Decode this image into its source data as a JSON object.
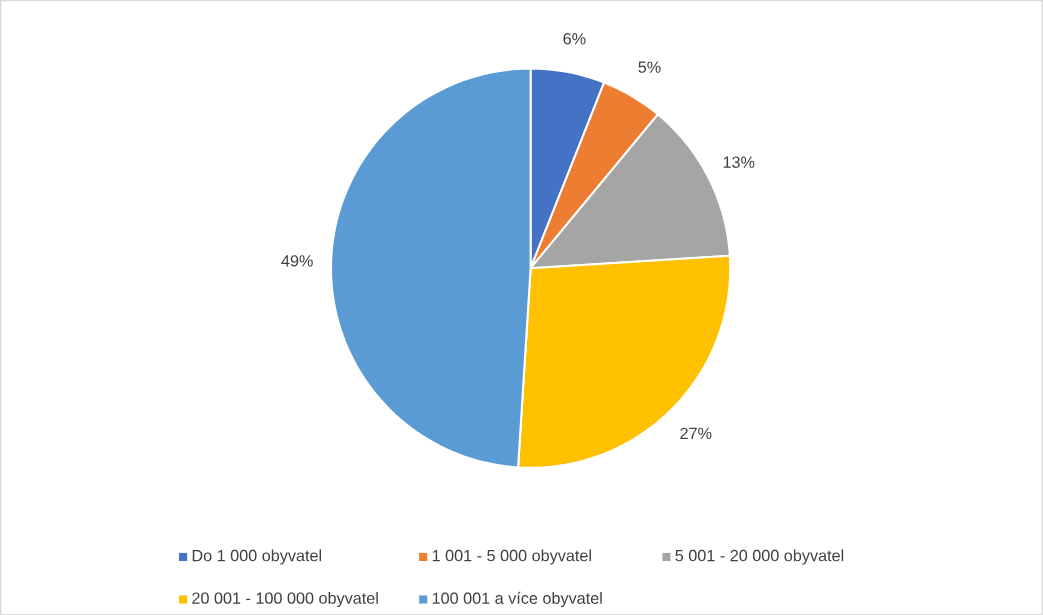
{
  "chart_data": {
    "type": "pie",
    "categories": [
      "Do 1 000 obyvatel",
      "1 001 - 5 000 obyvatel",
      "5 001 - 20 000 obyvatel",
      "20 001 - 100 000 obyvatel",
      "100 001 a více obyvatel"
    ],
    "values": [
      6,
      5,
      13,
      27,
      49
    ],
    "value_labels": [
      "6%",
      "5%",
      "13%",
      "27%",
      "49%"
    ],
    "colors": [
      "#4472c4",
      "#ed7d31",
      "#a5a5a5",
      "#ffc000",
      "#5b9bd5"
    ],
    "legend": "bottom"
  }
}
